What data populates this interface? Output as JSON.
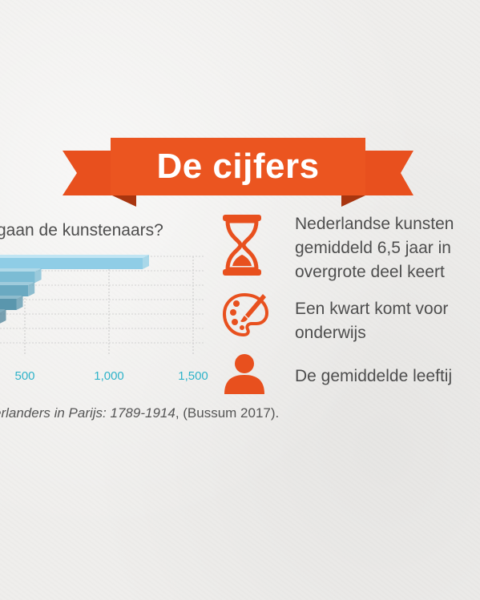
{
  "banner": {
    "title": "De cijfers"
  },
  "chart_data": {
    "type": "bar",
    "title": "gaan de kunstenaars?",
    "x_ticks": [
      "500",
      "1,000",
      "1,500"
    ],
    "values": [
      1200,
      560,
      520,
      450,
      350,
      240
    ]
  },
  "caption": {
    "italic_part": "erlanders in Parijs: 1789-1914",
    "rest_part": ", (Bussum 2017)."
  },
  "facts": [
    {
      "icon": "hourglass-icon",
      "lines": [
        "Nederlandse kunsten",
        "gemiddeld 6,5 jaar in",
        "overgrote deel keert"
      ]
    },
    {
      "icon": "palette-icon",
      "lines": [
        "Een kwart komt voor",
        "onderwijs"
      ]
    },
    {
      "icon": "person-icon",
      "lines": [
        "De gemiddelde leeftij"
      ]
    }
  ],
  "colors": {
    "accent": "#e8501e",
    "accent_dark": "#b83a12",
    "bar_light": "#8fcde6",
    "tick": "#2fb3c9"
  }
}
